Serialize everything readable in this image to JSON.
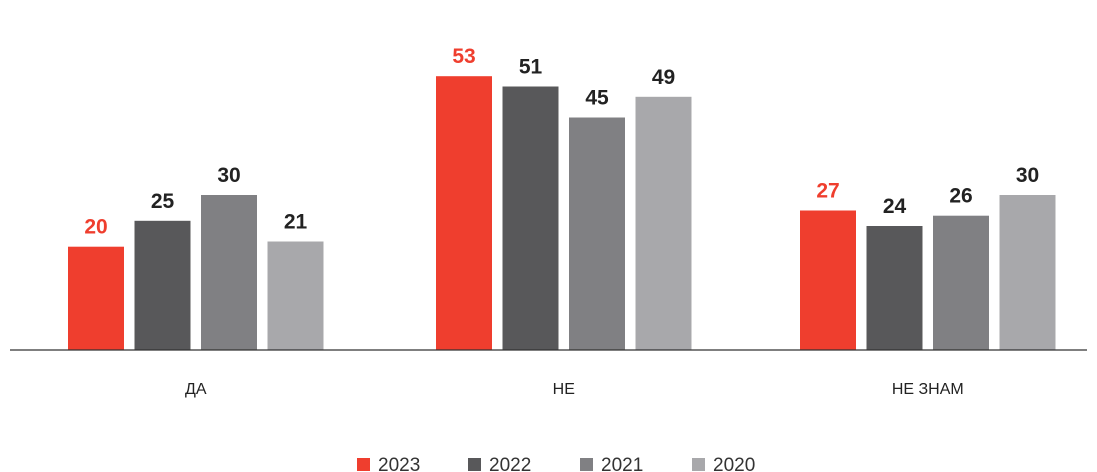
{
  "chart_data": {
    "type": "bar",
    "title": "",
    "xlabel": "",
    "ylabel": "",
    "categories": [
      "ДА",
      "НЕ",
      "НЕ ЗНАМ"
    ],
    "series": [
      {
        "name": "2023",
        "values": [
          20,
          53,
          27
        ],
        "color": "#ef3e2e",
        "label_color": "#ef3e2e"
      },
      {
        "name": "2022",
        "values": [
          25,
          51,
          24
        ],
        "color": "#58585a",
        "label_color": "#222222"
      },
      {
        "name": "2021",
        "values": [
          30,
          45,
          26
        ],
        "color": "#808083",
        "label_color": "#222222"
      },
      {
        "name": "2020",
        "values": [
          21,
          49,
          30
        ],
        "color": "#a8a8ab",
        "label_color": "#222222"
      }
    ],
    "ylim": [
      0,
      60
    ],
    "grid": false,
    "legend_position": "bottom-center"
  }
}
